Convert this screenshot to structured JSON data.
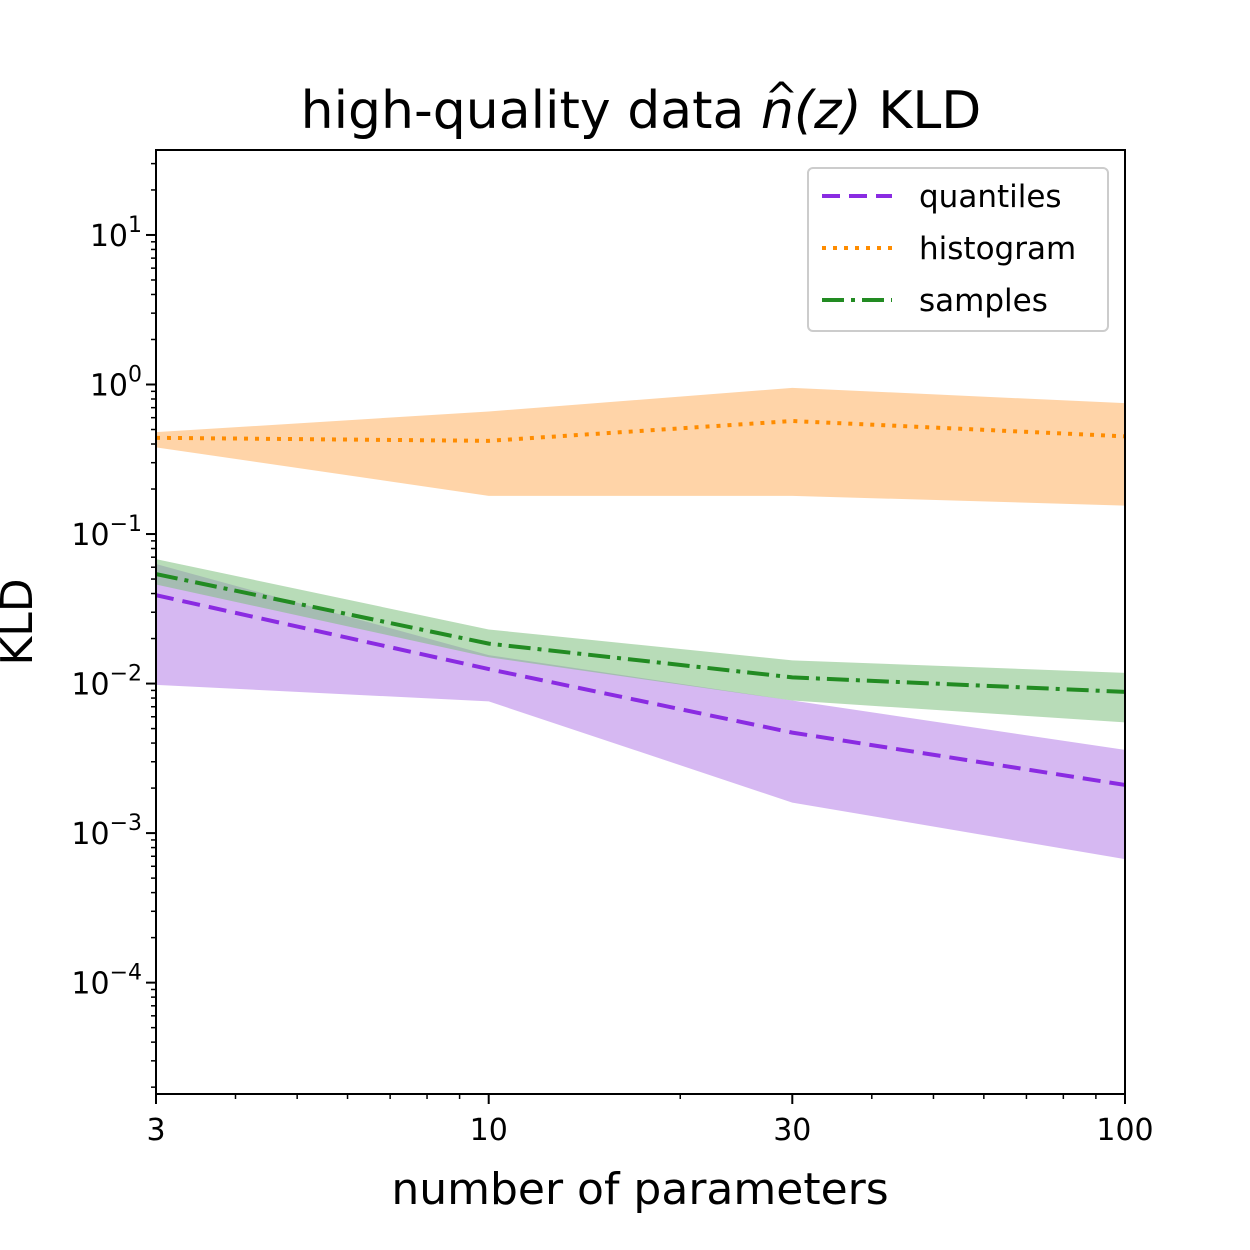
{
  "chart_data": {
    "type": "line",
    "title": "high-quality data ",
    "title_math": {
      "base": "n",
      "hat": "^",
      "arg": "(z)",
      "suffix": " KLD"
    },
    "xlabel": "number of parameters",
    "ylabel": "KLD",
    "xscale": "log",
    "yscale": "log",
    "xlim": [
      3,
      100
    ],
    "ylim": [
      1.8e-05,
      37
    ],
    "x_ticks": [
      {
        "value": 3,
        "label": "3"
      },
      {
        "value": 10,
        "label": "10"
      },
      {
        "value": 30,
        "label": "30"
      },
      {
        "value": 100,
        "label": "100"
      }
    ],
    "y_ticks": [
      {
        "value": 0.0001,
        "base": "10",
        "exp": "−4"
      },
      {
        "value": 0.001,
        "base": "10",
        "exp": "−3"
      },
      {
        "value": 0.01,
        "base": "10",
        "exp": "−2"
      },
      {
        "value": 0.1,
        "base": "10",
        "exp": "−1"
      },
      {
        "value": 1,
        "base": "10",
        "exp": "0"
      },
      {
        "value": 10,
        "base": "10",
        "exp": "1"
      }
    ],
    "legend_position": "upper-right",
    "x": [
      3,
      10,
      30,
      100
    ],
    "series": [
      {
        "name": "quantiles",
        "color": "#8a2be2",
        "fill": "#b57ee8",
        "dash": "18,9",
        "values": [
          0.039,
          0.0125,
          0.0047,
          0.0021
        ],
        "lower": [
          0.0098,
          0.0076,
          0.0016,
          0.00067
        ],
        "upper": [
          0.063,
          0.0155,
          0.0077,
          0.0036
        ]
      },
      {
        "name": "histogram",
        "color": "#ff8c00",
        "fill": "#ffb061",
        "dash": "4,7",
        "values": [
          0.44,
          0.42,
          0.57,
          0.45
        ],
        "lower": [
          0.38,
          0.18,
          0.18,
          0.155
        ],
        "upper": [
          0.48,
          0.66,
          0.95,
          0.75
        ]
      },
      {
        "name": "samples",
        "color": "#228b22",
        "fill": "#7dbf7d",
        "dash": "22,7,4,7",
        "values": [
          0.054,
          0.0185,
          0.011,
          0.0088
        ],
        "lower": [
          0.046,
          0.015,
          0.0077,
          0.0055
        ],
        "upper": [
          0.068,
          0.023,
          0.0143,
          0.0118
        ]
      }
    ]
  }
}
